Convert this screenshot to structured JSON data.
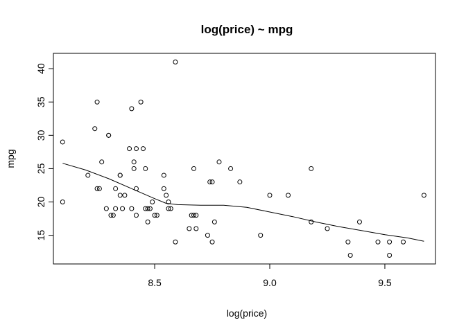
{
  "chart_data": {
    "type": "scatter",
    "title": "log(price) ~ mpg",
    "xlabel": "log(price)",
    "ylabel": "mpg",
    "xlim": [
      8.06,
      9.72
    ],
    "ylim": [
      10.7,
      42.3
    ],
    "xticks": [
      8.5,
      9.0,
      9.5
    ],
    "xtick_labels": [
      "8.5",
      "9.0",
      "9.5"
    ],
    "yticks": [
      15,
      20,
      25,
      30,
      35,
      40
    ],
    "ytick_labels": [
      "15",
      "20",
      "25",
      "30",
      "35",
      "40"
    ],
    "grid": false,
    "legend": "none",
    "colors": {
      "points": "#000000",
      "line": "#000000",
      "axes": "#000000"
    },
    "series": [
      {
        "type": "scatter",
        "marker": "open-circle",
        "points": [
          [
            8.1,
            29
          ],
          [
            8.1,
            20
          ],
          [
            8.21,
            24
          ],
          [
            8.24,
            31
          ],
          [
            8.25,
            35
          ],
          [
            8.25,
            22
          ],
          [
            8.26,
            22
          ],
          [
            8.27,
            26
          ],
          [
            8.29,
            19
          ],
          [
            8.3,
            30
          ],
          [
            8.3,
            30
          ],
          [
            8.31,
            18
          ],
          [
            8.32,
            18
          ],
          [
            8.33,
            22
          ],
          [
            8.33,
            19
          ],
          [
            8.35,
            24
          ],
          [
            8.35,
            24
          ],
          [
            8.35,
            21
          ],
          [
            8.36,
            19
          ],
          [
            8.37,
            21
          ],
          [
            8.39,
            28
          ],
          [
            8.4,
            34
          ],
          [
            8.4,
            19
          ],
          [
            8.41,
            26
          ],
          [
            8.41,
            25
          ],
          [
            8.42,
            28
          ],
          [
            8.42,
            22
          ],
          [
            8.42,
            18
          ],
          [
            8.44,
            35
          ],
          [
            8.45,
            28
          ],
          [
            8.46,
            25
          ],
          [
            8.46,
            19
          ],
          [
            8.47,
            19
          ],
          [
            8.47,
            17
          ],
          [
            8.48,
            19
          ],
          [
            8.49,
            20
          ],
          [
            8.5,
            18
          ],
          [
            8.51,
            18
          ],
          [
            8.54,
            24
          ],
          [
            8.54,
            22
          ],
          [
            8.55,
            21
          ],
          [
            8.56,
            20
          ],
          [
            8.56,
            19
          ],
          [
            8.57,
            19
          ],
          [
            8.59,
            41
          ],
          [
            8.59,
            14
          ],
          [
            8.65,
            16
          ],
          [
            8.66,
            18
          ],
          [
            8.67,
            18
          ],
          [
            8.67,
            25
          ],
          [
            8.68,
            18
          ],
          [
            8.68,
            16
          ],
          [
            8.73,
            15
          ],
          [
            8.74,
            23
          ],
          [
            8.75,
            23
          ],
          [
            8.75,
            14
          ],
          [
            8.76,
            17
          ],
          [
            8.78,
            26
          ],
          [
            8.83,
            25
          ],
          [
            8.87,
            23
          ],
          [
            8.96,
            15
          ],
          [
            9.0,
            21
          ],
          [
            9.08,
            21
          ],
          [
            9.18,
            17
          ],
          [
            9.18,
            25
          ],
          [
            9.25,
            16
          ],
          [
            9.34,
            14
          ],
          [
            9.35,
            12
          ],
          [
            9.39,
            17
          ],
          [
            9.47,
            14
          ],
          [
            9.52,
            14
          ],
          [
            9.52,
            12
          ],
          [
            9.58,
            14
          ],
          [
            9.67,
            21
          ]
        ]
      },
      {
        "type": "line",
        "smooth": "lowess",
        "points": [
          [
            8.1,
            25.8
          ],
          [
            8.2,
            24.8
          ],
          [
            8.3,
            23.5
          ],
          [
            8.4,
            22.0
          ],
          [
            8.5,
            20.5
          ],
          [
            8.55,
            19.8
          ],
          [
            8.6,
            19.6
          ],
          [
            8.7,
            19.5
          ],
          [
            8.8,
            19.5
          ],
          [
            8.9,
            19.2
          ],
          [
            9.0,
            18.5
          ],
          [
            9.1,
            17.8
          ],
          [
            9.2,
            17.0
          ],
          [
            9.3,
            16.3
          ],
          [
            9.4,
            15.7
          ],
          [
            9.5,
            15.1
          ],
          [
            9.6,
            14.6
          ],
          [
            9.67,
            14.1
          ]
        ]
      }
    ]
  }
}
